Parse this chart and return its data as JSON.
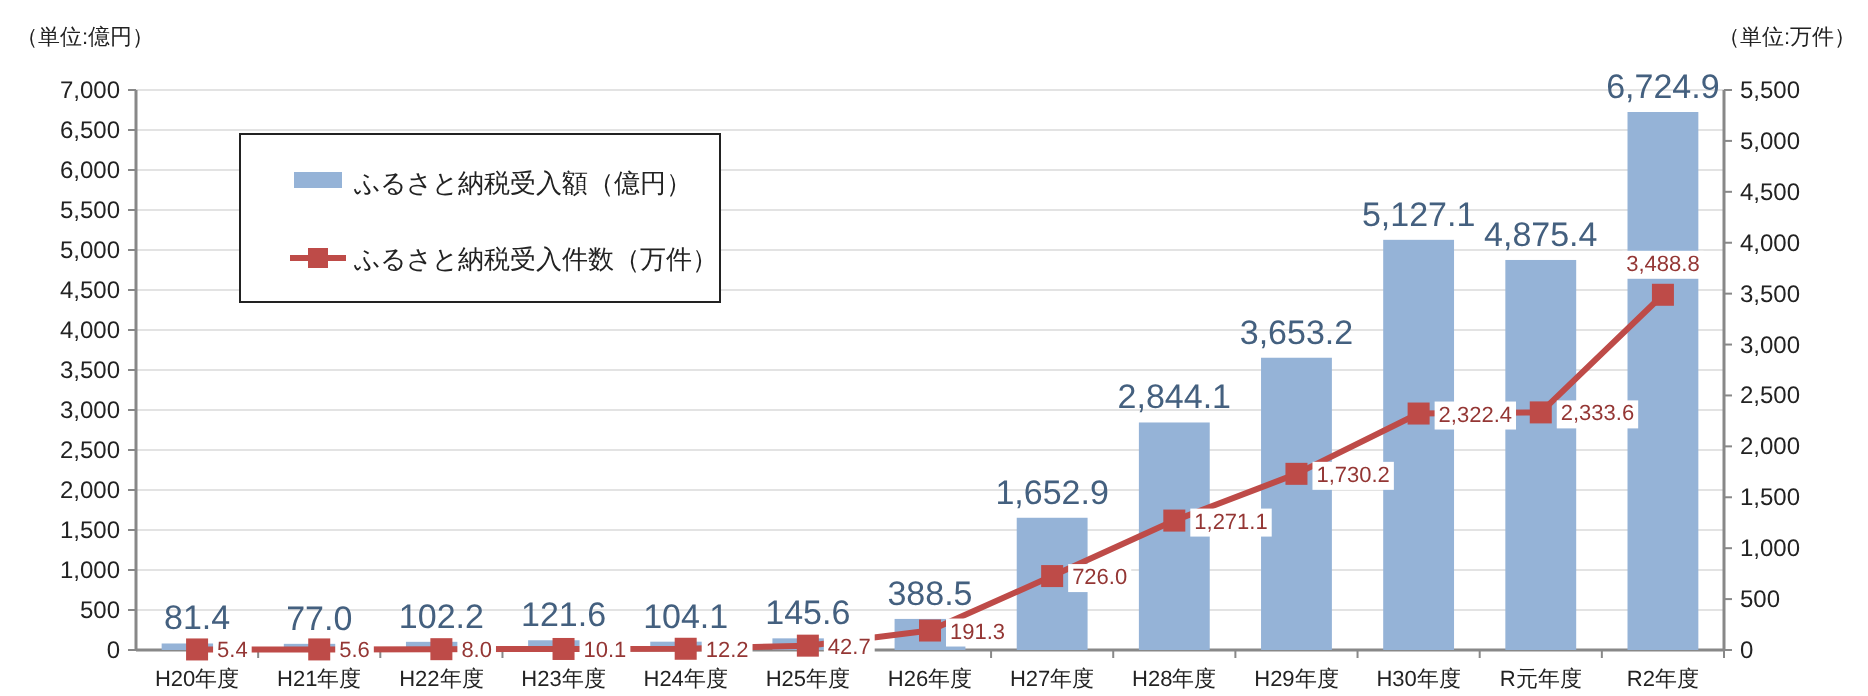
{
  "chart_data": {
    "type": "bar",
    "categories": [
      "H20年度",
      "H21年度",
      "H22年度",
      "H23年度",
      "H24年度",
      "H25年度",
      "H26年度",
      "H27年度",
      "H28年度",
      "H29年度",
      "H30年度",
      "R元年度",
      "R2年度"
    ],
    "series": [
      {
        "name": "ふるさと納税受入額（億円）",
        "color": "#95b3d7",
        "values": [
          81.4,
          77.0,
          102.2,
          121.6,
          104.1,
          145.6,
          388.5,
          1652.9,
          2844.1,
          3653.2,
          5127.1,
          4875.4,
          6724.9
        ],
        "value_labels": [
          "81.4",
          "77.0",
          "102.2",
          "121.6",
          "104.1",
          "145.6",
          "388.5",
          "1,652.9",
          "2,844.1",
          "3,653.2",
          "5,127.1",
          "4,875.4",
          "6,724.9"
        ]
      },
      {
        "name": "ふるさと納税受入件数（万件）",
        "type": "line",
        "axis": "y2",
        "color": "#be4b48",
        "marker": "square",
        "line_style": "solid",
        "values": [
          5.4,
          5.6,
          8.0,
          10.1,
          12.2,
          42.7,
          191.3,
          726.0,
          1271.1,
          1730.2,
          2322.4,
          2333.6,
          3488.8
        ],
        "value_labels": [
          "5.4",
          "5.6",
          "8.0",
          "10.1",
          "12.2",
          "42.7",
          "191.3",
          "726.0",
          "1,271.1",
          "1,730.2",
          "2,322.4",
          "2,333.6",
          "3,488.8"
        ]
      }
    ],
    "ylabel": "（単位:億円）",
    "y2label": "（単位:万件）",
    "ylim": [
      0,
      7000
    ],
    "yticks": [
      0,
      500,
      {
        "value": 1000,
        "label": "1,000"
      },
      {
        "value": 1500,
        "label": "1,500"
      },
      {
        "value": 2000,
        "label": "2,000"
      },
      {
        "value": 2500,
        "label": "2,500"
      },
      {
        "value": 3000,
        "label": "3,000"
      },
      {
        "value": 3500,
        "label": "3,500"
      },
      {
        "value": 4000,
        "label": "4,000"
      },
      {
        "value": 4500,
        "label": "4,500"
      },
      {
        "value": 5000,
        "label": "5,000"
      },
      {
        "value": 5500,
        "label": "5,500"
      },
      {
        "value": 6000,
        "label": "6,000"
      },
      {
        "value": 6500,
        "label": "6,500"
      },
      {
        "value": 7000,
        "label": "7,000"
      }
    ],
    "y2lim": [
      0,
      5500
    ],
    "y2ticks": [
      0,
      500,
      {
        "value": 1000,
        "label": "1,000"
      },
      {
        "value": 1500,
        "label": "1,500"
      },
      {
        "value": 2000,
        "label": "2,000"
      },
      {
        "value": 2500,
        "label": "2,500"
      },
      {
        "value": 3000,
        "label": "3,000"
      },
      {
        "value": 3500,
        "label": "3,500"
      },
      {
        "value": 4000,
        "label": "4,000"
      },
      {
        "value": 4500,
        "label": "4,500"
      },
      {
        "value": 5000,
        "label": "5,000"
      },
      {
        "value": 5500,
        "label": "5,500"
      }
    ],
    "grid": "y",
    "legend": "top left"
  }
}
